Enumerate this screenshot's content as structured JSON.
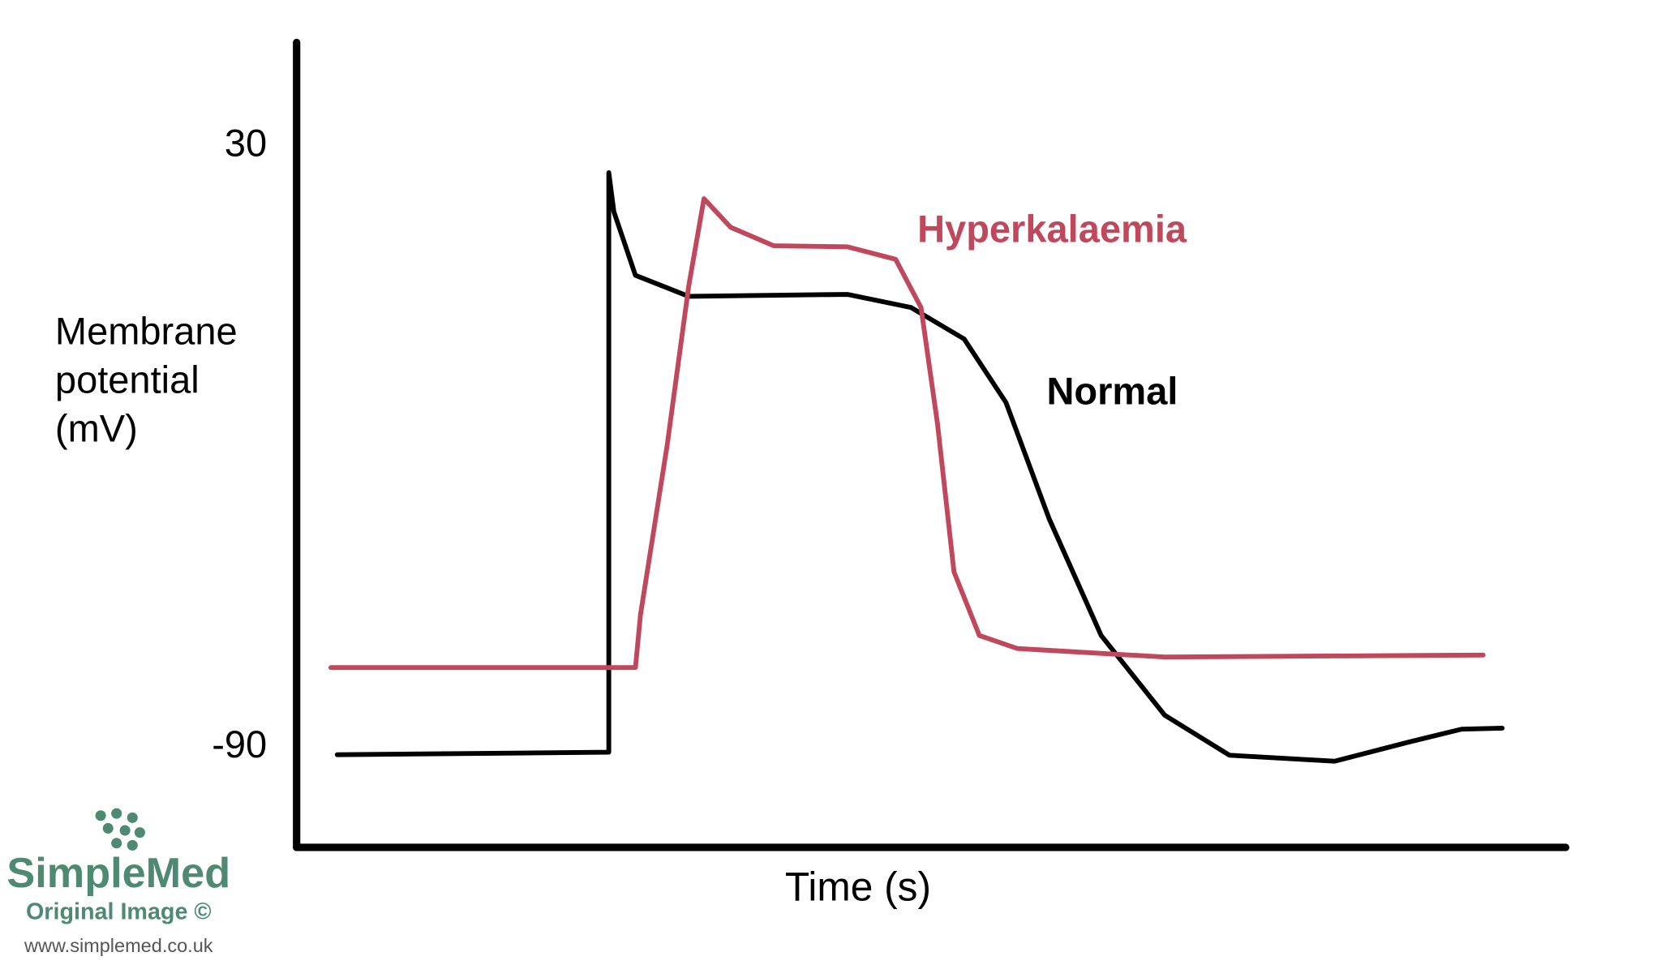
{
  "chart_data": {
    "type": "line",
    "y_label": "Membrane potential (mV)",
    "x_label": "Time (s)",
    "xlim": [
      0,
      100
    ],
    "ylim": [
      -110,
      50.7
    ],
    "yticks": [
      -90,
      30
    ],
    "series": [
      {
        "name": "Normal",
        "color": "#000000",
        "x": [
          3.2,
          24.6,
          24.6,
          25.0,
          26.7,
          30.9,
          43.4,
          48.4,
          52.6,
          55.9,
          59.3,
          63.4,
          68.4,
          73.5,
          81.8,
          87.6,
          91.8,
          95.0
        ],
        "values": [
          -91.5,
          -91,
          24.7,
          16.9,
          4.2,
          0,
          0.4,
          -2.2,
          -8.5,
          -21.2,
          -44.4,
          -67.7,
          -83.6,
          -91.6,
          -92.8,
          -89,
          -86.4,
          -86.2
        ]
      },
      {
        "name": "Hyperkalaemia",
        "color": "#c0485c",
        "x": [
          2.7,
          26.7,
          27.1,
          29.2,
          30.9,
          32.1,
          34.2,
          37.6,
          43.4,
          47.2,
          49.2,
          50.5,
          51.8,
          53.8,
          56.8,
          68.4,
          93.5
        ],
        "values": [
          -74.1,
          -74.1,
          -63.5,
          -29.7,
          2.1,
          19.5,
          13.8,
          10.1,
          9.9,
          7.4,
          -2.2,
          -25.4,
          -55.0,
          -67.7,
          -70.3,
          -72.0,
          -71.6
        ]
      }
    ]
  },
  "watermark": {
    "brand": "SimpleMed",
    "note": "Original Image ©",
    "url": "www.simplemed.co.uk"
  }
}
